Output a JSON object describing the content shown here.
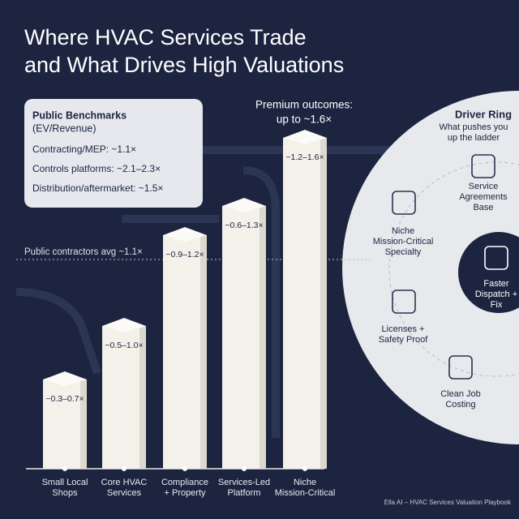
{
  "title": [
    "Where HVAC Services Trade",
    "and What Drives High Valuations"
  ],
  "benchmarks": {
    "heading": [
      "Public Benchmarks",
      "(EV/Revenue)"
    ],
    "items": [
      "Contracting/MEP: ~1.1×",
      "Controls platforms: ~2.1–2.3×",
      "Distribution/aftermarket: ~1.5×"
    ]
  },
  "premium": [
    "Premium outcomes:",
    "up to ~1.6×"
  ],
  "avg_line": "Public contractors avg ~1.1×",
  "bars": [
    {
      "range": "~0.3–0.7×",
      "label": [
        "Small Local",
        "Shops"
      ]
    },
    {
      "range": "~0.5–1.0×",
      "label": [
        "Core HVAC",
        "Services"
      ]
    },
    {
      "range": "~0.9–1.2×",
      "label": [
        "Compliance",
        "+ Property"
      ]
    },
    {
      "range": "~0.6–1.3×",
      "label": [
        "Services-Led",
        "Platform"
      ]
    },
    {
      "range": "~1.2–1.6×",
      "label": [
        "Niche",
        "Mission-Critical"
      ]
    }
  ],
  "driver_ring": {
    "title": "Driver Ring",
    "subtitle": [
      "What pushes you",
      "up the ladder"
    ],
    "drivers": [
      {
        "label": [
          "Service",
          "Agreements",
          "Base"
        ]
      },
      {
        "label": [
          "Niche",
          "Mission-Critical",
          "Specialty"
        ]
      },
      {
        "label": [
          "Faster",
          "Dispatch +",
          "Fix"
        ]
      },
      {
        "label": [
          "Licenses +",
          "Safety Proof"
        ]
      },
      {
        "label": [
          "Clean Job",
          "Costing"
        ]
      }
    ]
  },
  "footer": "Ella AI – HVAC Services Valuation Playbook"
}
